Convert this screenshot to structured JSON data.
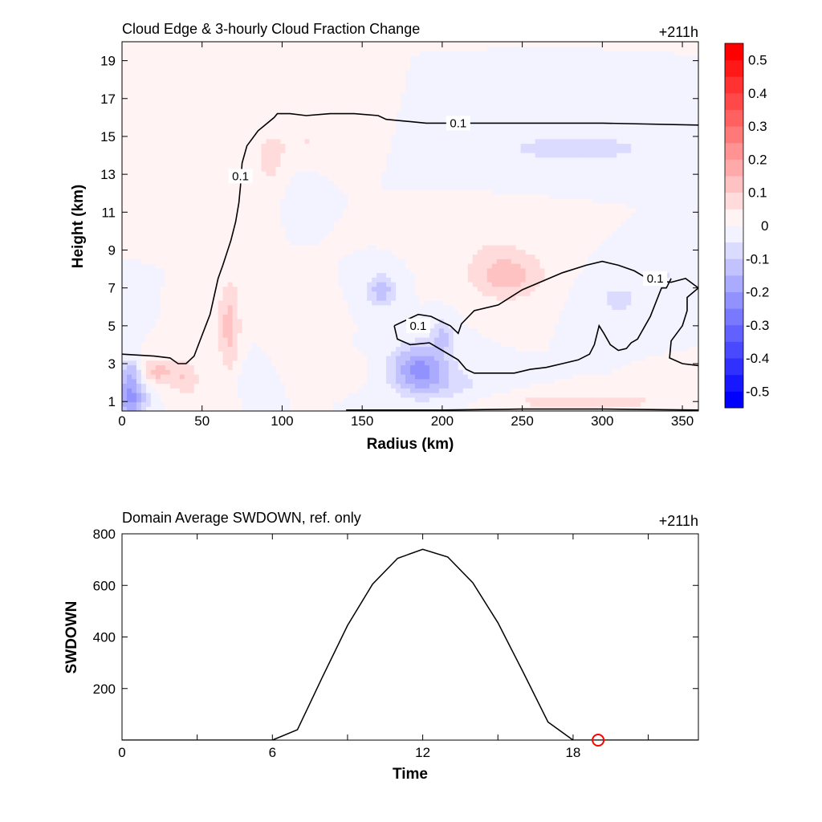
{
  "chart_data": [
    {
      "type": "heatmap",
      "title": "Cloud Edge & 3-hourly Cloud Fraction Change",
      "time_label": "+211h",
      "xlabel": "Radius (km)",
      "ylabel": "Height (km)",
      "xlim": [
        0,
        360
      ],
      "ylim": [
        0.5,
        20
      ],
      "xticks": [
        0,
        50,
        100,
        150,
        200,
        250,
        300,
        350
      ],
      "yticks": [
        1,
        3,
        5,
        7,
        9,
        11,
        13,
        15,
        17,
        19
      ],
      "colorbar": {
        "min": -0.55,
        "max": 0.55,
        "step": 0.05,
        "labels": [
          0.5,
          0.4,
          0.3,
          0.2,
          0.1,
          0,
          -0.1,
          -0.2,
          -0.3,
          -0.4,
          -0.5
        ],
        "label_text": [
          "0.5",
          "0.4",
          "0.3",
          "0.2",
          "0.1",
          "0",
          "-0.1",
          "-0.2",
          "-0.3",
          "-0.4",
          "-0.5"
        ],
        "negative_color": "#0000ff",
        "positive_color": "#ff0000",
        "neutral_color": "#ffffff"
      },
      "features": [
        {
          "r": 5,
          "z": 1.3,
          "sr": 10,
          "sz": 1.2,
          "v": -0.22
        },
        {
          "r": 6,
          "z": 2.7,
          "sr": 6,
          "sz": 0.6,
          "v": -0.1
        },
        {
          "r": 22,
          "z": 2.6,
          "sr": 12,
          "sz": 0.7,
          "v": 0.12
        },
        {
          "r": 40,
          "z": 2.2,
          "sr": 9,
          "sz": 1.0,
          "v": 0.09
        },
        {
          "r": 67,
          "z": 5.0,
          "sr": 7,
          "sz": 2.5,
          "v": 0.12
        },
        {
          "r": 92,
          "z": 13.7,
          "sr": 10,
          "sz": 1.3,
          "v": 0.07
        },
        {
          "r": 115,
          "z": 14.8,
          "sr": 22,
          "sz": 0.9,
          "v": 0.05
        },
        {
          "r": 112,
          "z": 4.5,
          "sr": 14,
          "sz": 1.3,
          "v": 0.05
        },
        {
          "r": 140,
          "z": 2.7,
          "sr": 14,
          "sz": 0.6,
          "v": 0.03
        },
        {
          "r": 81,
          "z": 2.3,
          "sr": 10,
          "sz": 1.0,
          "v": -0.03
        },
        {
          "r": 186,
          "z": 2.7,
          "sr": 18,
          "sz": 1.3,
          "v": -0.22
        },
        {
          "r": 162,
          "z": 6.9,
          "sr": 9,
          "sz": 0.9,
          "v": -0.13
        },
        {
          "r": 200,
          "z": 4.5,
          "sr": 7,
          "sz": 0.9,
          "v": -0.1
        },
        {
          "r": 240,
          "z": 7.7,
          "sr": 24,
          "sz": 1.3,
          "v": 0.13
        },
        {
          "r": 210,
          "z": 1.9,
          "sr": 22,
          "sz": 0.8,
          "v": -0.05
        },
        {
          "r": 265,
          "z": 1.0,
          "sr": 40,
          "sz": 0.4,
          "v": 0.06
        },
        {
          "r": 320,
          "z": 1.0,
          "sr": 30,
          "sz": 0.4,
          "v": 0.05
        },
        {
          "r": 350,
          "z": 2.0,
          "sr": 15,
          "sz": 0.6,
          "v": 0.04
        },
        {
          "r": 265,
          "z": 14.4,
          "sr": 40,
          "sz": 0.9,
          "v": -0.06
        },
        {
          "r": 307,
          "z": 14.4,
          "sr": 25,
          "sz": 0.6,
          "v": -0.05
        },
        {
          "r": 310,
          "z": 6.4,
          "sr": 20,
          "sz": 1.2,
          "v": -0.06
        },
        {
          "r": 340,
          "z": 7.7,
          "sr": 15,
          "sz": 1.0,
          "v": -0.05
        },
        {
          "r": 225,
          "z": 9.5,
          "sr": 30,
          "sz": 1.0,
          "v": 0.03
        },
        {
          "r": 113,
          "z": 12.0,
          "sr": 8,
          "sz": 0.8,
          "v": -0.04
        }
      ],
      "contours": [
        {
          "level": "0.1",
          "label_at": [
            [
              210,
              15.7
            ],
            [
              74,
              12.9
            ]
          ],
          "points": [
            [
              0,
              3.5
            ],
            [
              20,
              3.4
            ],
            [
              30,
              3.3
            ],
            [
              35,
              3.0
            ],
            [
              40,
              3.0
            ],
            [
              45,
              3.4
            ],
            [
              50,
              4.5
            ],
            [
              55,
              5.6
            ],
            [
              60,
              7.5
            ],
            [
              63,
              8.2
            ],
            [
              68,
              9.5
            ],
            [
              71,
              10.5
            ],
            [
              73,
              11.5
            ],
            [
              74,
              12.4
            ],
            [
              75,
              13.6
            ],
            [
              78,
              14.5
            ],
            [
              85,
              15.3
            ],
            [
              95,
              16.0
            ],
            [
              97,
              16.2
            ],
            [
              105,
              16.2
            ],
            [
              115,
              16.1
            ],
            [
              130,
              16.2
            ],
            [
              145,
              16.2
            ],
            [
              160,
              16.1
            ],
            [
              165,
              15.9
            ],
            [
              190,
              15.7
            ],
            [
              250,
              15.7
            ],
            [
              300,
              15.7
            ],
            [
              360,
              15.6
            ]
          ]
        },
        {
          "level": "0.1",
          "label_at": [
            [
              185,
              5.0
            ],
            [
              333,
              7.5
            ]
          ],
          "points": [
            [
              170,
              5.0
            ],
            [
              175,
              5.2
            ],
            [
              185,
              5.6
            ],
            [
              193,
              5.5
            ],
            [
              200,
              5.2
            ],
            [
              205,
              5.0
            ],
            [
              210,
              4.6
            ],
            [
              212,
              5.1
            ],
            [
              220,
              5.8
            ],
            [
              235,
              6.1
            ],
            [
              250,
              6.9
            ],
            [
              275,
              7.8
            ],
            [
              290,
              8.2
            ],
            [
              300,
              8.4
            ],
            [
              310,
              8.2
            ],
            [
              320,
              7.9
            ],
            [
              330,
              7.4
            ],
            [
              343,
              7.3
            ],
            [
              352,
              7.5
            ],
            [
              360,
              7.0
            ]
          ]
        },
        {
          "level": "",
          "points": [
            [
              170,
              5.0
            ],
            [
              172,
              4.3
            ],
            [
              180,
              4.0
            ],
            [
              192,
              4.1
            ],
            [
              200,
              3.7
            ],
            [
              210,
              3.2
            ],
            [
              215,
              2.7
            ],
            [
              220,
              2.5
            ],
            [
              245,
              2.5
            ],
            [
              255,
              2.7
            ],
            [
              265,
              2.8
            ],
            [
              275,
              3.0
            ],
            [
              285,
              3.2
            ],
            [
              292,
              3.5
            ],
            [
              295,
              4.0
            ],
            [
              298,
              5.0
            ],
            [
              301,
              4.6
            ],
            [
              305,
              4.0
            ],
            [
              310,
              3.7
            ],
            [
              315,
              3.8
            ],
            [
              318,
              4.1
            ],
            [
              322,
              4.3
            ],
            [
              330,
              5.5
            ],
            [
              337,
              7.0
            ],
            [
              340,
              7.0
            ],
            [
              343,
              7.5
            ]
          ]
        },
        {
          "level": "",
          "points": [
            [
              360,
              7.0
            ],
            [
              353,
              6.5
            ],
            [
              353,
              5.8
            ],
            [
              350,
              5.0
            ],
            [
              343,
              4.2
            ],
            [
              342,
              3.3
            ],
            [
              350,
              3.0
            ],
            [
              360,
              2.9
            ]
          ]
        },
        {
          "level": "",
          "points": [
            [
              140,
              0.55
            ],
            [
              200,
              0.55
            ],
            [
              250,
              0.6
            ],
            [
              300,
              0.6
            ],
            [
              360,
              0.55
            ]
          ]
        }
      ]
    },
    {
      "type": "line",
      "title": "Domain Average SWDOWN, ref. only",
      "time_label": "+211h",
      "xlabel": "Time",
      "ylabel": "SWDOWN",
      "xlim": [
        0,
        23
      ],
      "ylim": [
        0,
        800
      ],
      "xticks": [
        0,
        6,
        12,
        18
      ],
      "yticks": [
        200,
        400,
        600,
        800
      ],
      "x": [
        0,
        1,
        2,
        3,
        4,
        5,
        6,
        7,
        8,
        9,
        10,
        11,
        12,
        13,
        14,
        15,
        16,
        17,
        18,
        19,
        20,
        21,
        22,
        23
      ],
      "values": [
        0,
        0,
        0,
        0,
        0,
        0,
        0,
        40,
        245,
        445,
        605,
        705,
        740,
        710,
        610,
        455,
        265,
        70,
        0,
        0,
        0,
        0,
        0,
        0
      ],
      "line_color": "#000000",
      "marker": {
        "x": 19,
        "y": 0,
        "color": "#ff0000"
      }
    }
  ]
}
